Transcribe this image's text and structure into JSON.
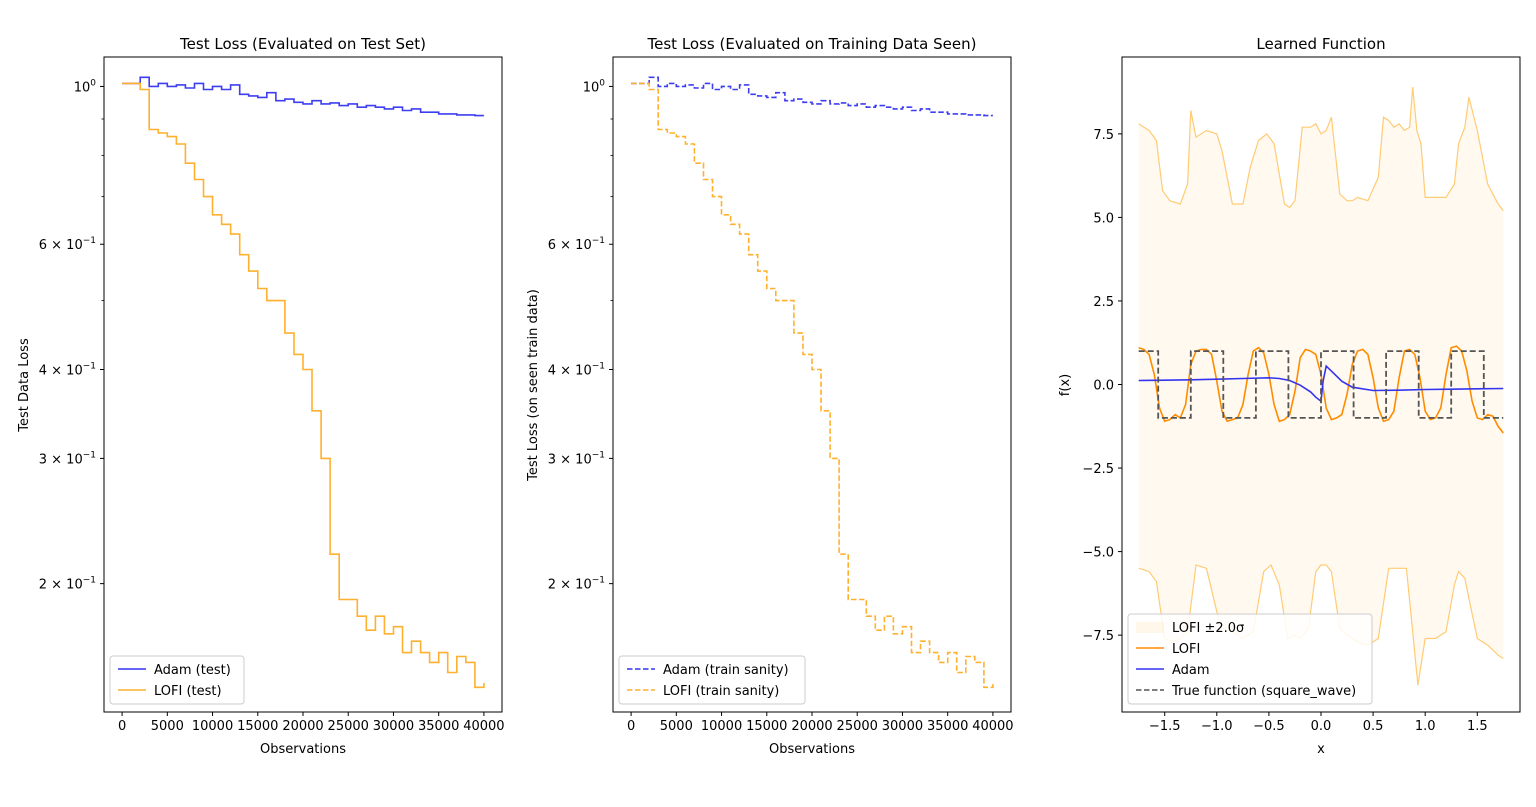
{
  "chart_data": [
    {
      "type": "line",
      "title": "Test Loss (Evaluated on Test Set)",
      "xlabel": "Observations",
      "ylabel": "Test Data Loss",
      "yscale": "log",
      "xlim": [
        -2000,
        42000
      ],
      "ylim": [
        0.132,
        1.1
      ],
      "xticks": [
        0,
        5000,
        10000,
        15000,
        20000,
        25000,
        30000,
        35000,
        40000
      ],
      "xtick_labels": [
        "0",
        "5000",
        "10000",
        "15000",
        "20000",
        "25000",
        "30000",
        "35000",
        "40000"
      ],
      "yticks": [
        {
          "value": 1.0,
          "base": "10",
          "exp": "0",
          "mult": ""
        },
        {
          "value": 0.6,
          "base": "10",
          "exp": "−1",
          "mult": "6 × "
        },
        {
          "value": 0.4,
          "base": "10",
          "exp": "−1",
          "mult": "4 × "
        },
        {
          "value": 0.3,
          "base": "10",
          "exp": "−1",
          "mult": "3 × "
        },
        {
          "value": 0.2,
          "base": "10",
          "exp": "−1",
          "mult": "2 × "
        }
      ],
      "minor_yticks": [
        0.9,
        0.8,
        0.7,
        0.5
      ],
      "legend_position": "lower-left",
      "series": [
        {
          "name": "Adam (test)",
          "color": "#3434f0",
          "dash": "solid",
          "step": true,
          "x": [
            0,
            1000,
            2000,
            3000,
            4000,
            5000,
            6000,
            7000,
            8000,
            9000,
            10000,
            11000,
            12000,
            13000,
            14000,
            15000,
            16000,
            17000,
            18000,
            19000,
            20000,
            21000,
            22000,
            23000,
            24000,
            25000,
            26000,
            27000,
            28000,
            29000,
            30000,
            31000,
            32000,
            33000,
            34000,
            35000,
            36000,
            37000,
            38000,
            39000,
            40000
          ],
          "y": [
            1.01,
            1.01,
            1.03,
            1.0,
            1.01,
            1.0,
            1.005,
            0.995,
            1.01,
            0.99,
            1.0,
            0.99,
            1.005,
            0.975,
            0.97,
            0.965,
            0.98,
            0.955,
            0.96,
            0.95,
            0.945,
            0.955,
            0.945,
            0.948,
            0.94,
            0.945,
            0.935,
            0.94,
            0.935,
            0.93,
            0.935,
            0.925,
            0.93,
            0.92,
            0.92,
            0.915,
            0.915,
            0.912,
            0.912,
            0.91,
            0.91
          ]
        },
        {
          "name": "LOFI (test)",
          "color": "#ffb02e",
          "dash": "solid",
          "step": true,
          "x": [
            0,
            1000,
            2000,
            3000,
            4000,
            5000,
            6000,
            7000,
            8000,
            9000,
            10000,
            11000,
            12000,
            13000,
            14000,
            15000,
            16000,
            17000,
            18000,
            19000,
            20000,
            21000,
            22000,
            23000,
            24000,
            25000,
            26000,
            27000,
            28000,
            29000,
            30000,
            31000,
            32000,
            33000,
            34000,
            35000,
            36000,
            37000,
            38000,
            39000,
            40000
          ],
          "y": [
            1.01,
            1.01,
            0.99,
            0.87,
            0.86,
            0.85,
            0.83,
            0.78,
            0.74,
            0.7,
            0.66,
            0.64,
            0.62,
            0.58,
            0.55,
            0.52,
            0.5,
            0.5,
            0.45,
            0.42,
            0.4,
            0.35,
            0.3,
            0.22,
            0.19,
            0.19,
            0.18,
            0.172,
            0.18,
            0.17,
            0.174,
            0.16,
            0.166,
            0.16,
            0.155,
            0.16,
            0.15,
            0.158,
            0.155,
            0.143,
            0.145
          ]
        }
      ]
    },
    {
      "type": "line",
      "title": "Test Loss (Evaluated on Training Data Seen)",
      "xlabel": "Observations",
      "ylabel": "Test Loss (on seen train data)",
      "yscale": "log",
      "xlim": [
        -2000,
        42000
      ],
      "ylim": [
        0.132,
        1.1
      ],
      "xticks": [
        0,
        5000,
        10000,
        15000,
        20000,
        25000,
        30000,
        35000,
        40000
      ],
      "xtick_labels": [
        "0",
        "5000",
        "10000",
        "15000",
        "20000",
        "25000",
        "30000",
        "35000",
        "40000"
      ],
      "yticks": [
        {
          "value": 1.0,
          "base": "10",
          "exp": "0",
          "mult": ""
        },
        {
          "value": 0.6,
          "base": "10",
          "exp": "−1",
          "mult": "6 × "
        },
        {
          "value": 0.4,
          "base": "10",
          "exp": "−1",
          "mult": "4 × "
        },
        {
          "value": 0.3,
          "base": "10",
          "exp": "−1",
          "mult": "3 × "
        },
        {
          "value": 0.2,
          "base": "10",
          "exp": "−1",
          "mult": "2 × "
        }
      ],
      "minor_yticks": [
        0.9,
        0.8,
        0.7,
        0.5
      ],
      "legend_position": "lower-left",
      "series": [
        {
          "name": "Adam (train sanity)",
          "color": "#3434f0",
          "dash": "dashed",
          "step": true,
          "x": [
            0,
            1000,
            2000,
            3000,
            4000,
            5000,
            6000,
            7000,
            8000,
            9000,
            10000,
            11000,
            12000,
            13000,
            14000,
            15000,
            16000,
            17000,
            18000,
            19000,
            20000,
            21000,
            22000,
            23000,
            24000,
            25000,
            26000,
            27000,
            28000,
            29000,
            30000,
            31000,
            32000,
            33000,
            34000,
            35000,
            36000,
            37000,
            38000,
            39000,
            40000
          ],
          "y": [
            1.01,
            1.01,
            1.03,
            1.0,
            1.01,
            1.0,
            1.005,
            0.995,
            1.01,
            0.99,
            1.0,
            0.99,
            1.005,
            0.975,
            0.97,
            0.965,
            0.98,
            0.955,
            0.96,
            0.95,
            0.945,
            0.955,
            0.945,
            0.948,
            0.94,
            0.945,
            0.935,
            0.94,
            0.935,
            0.93,
            0.935,
            0.925,
            0.93,
            0.92,
            0.92,
            0.915,
            0.915,
            0.912,
            0.912,
            0.91,
            0.91
          ]
        },
        {
          "name": "LOFI (train sanity)",
          "color": "#ffb02e",
          "dash": "dashed",
          "step": true,
          "x": [
            0,
            1000,
            2000,
            3000,
            4000,
            5000,
            6000,
            7000,
            8000,
            9000,
            10000,
            11000,
            12000,
            13000,
            14000,
            15000,
            16000,
            17000,
            18000,
            19000,
            20000,
            21000,
            22000,
            23000,
            24000,
            25000,
            26000,
            27000,
            28000,
            29000,
            30000,
            31000,
            32000,
            33000,
            34000,
            35000,
            36000,
            37000,
            38000,
            39000,
            40000
          ],
          "y": [
            1.01,
            1.01,
            0.99,
            0.87,
            0.86,
            0.85,
            0.83,
            0.78,
            0.74,
            0.7,
            0.66,
            0.64,
            0.62,
            0.58,
            0.55,
            0.52,
            0.5,
            0.5,
            0.45,
            0.42,
            0.4,
            0.35,
            0.3,
            0.22,
            0.19,
            0.19,
            0.18,
            0.172,
            0.18,
            0.17,
            0.174,
            0.16,
            0.166,
            0.16,
            0.155,
            0.16,
            0.15,
            0.158,
            0.155,
            0.143,
            0.145
          ]
        }
      ]
    },
    {
      "type": "line",
      "title": "Learned Function",
      "xlabel": "x",
      "ylabel": "f(x)",
      "yscale": "linear",
      "xlim": [
        -1.91,
        1.91
      ],
      "ylim": [
        -9.8,
        9.8
      ],
      "xticks": [
        -1.5,
        -1.0,
        -0.5,
        0.0,
        0.5,
        1.0,
        1.5
      ],
      "xtick_labels": [
        "−1.5",
        "−1.0",
        "−0.5",
        "0.0",
        "0.5",
        "1.0",
        "1.5"
      ],
      "yticks": [
        7.5,
        5.0,
        2.5,
        0.0,
        -2.5,
        -5.0,
        -7.5
      ],
      "ytick_labels": [
        "7.5",
        "5.0",
        "2.5",
        "0.0",
        "−2.5",
        "−5.0",
        "−7.5"
      ],
      "x_range": [
        -1.75,
        1.75
      ],
      "square_wave": {
        "half_period": 0.3125,
        "start_level": 1,
        "amplitude": 1
      },
      "band": {
        "name": "LOFI ±2.0σ",
        "color": "#ffb02e",
        "upper_x": [
          -1.75,
          -1.65,
          -1.58,
          -1.52,
          -1.45,
          -1.35,
          -1.28,
          -1.25,
          -1.2,
          -1.1,
          -1.0,
          -0.95,
          -0.85,
          -0.75,
          -0.68,
          -0.6,
          -0.52,
          -0.45,
          -0.35,
          -0.3,
          -0.25,
          -0.18,
          -0.1,
          -0.05,
          0.0,
          0.05,
          0.1,
          0.18,
          0.25,
          0.3,
          0.35,
          0.45,
          0.55,
          0.6,
          0.65,
          0.7,
          0.75,
          0.8,
          0.85,
          0.88,
          0.92,
          0.96,
          1.0,
          1.1,
          1.2,
          1.28,
          1.32,
          1.38,
          1.42,
          1.5,
          1.6,
          1.7,
          1.75
        ],
        "upper_y": [
          7.8,
          7.6,
          7.3,
          5.8,
          5.5,
          5.4,
          6.0,
          8.2,
          7.4,
          7.6,
          7.5,
          7.0,
          5.4,
          5.4,
          6.5,
          7.3,
          7.5,
          7.2,
          5.4,
          5.3,
          5.5,
          7.7,
          7.7,
          7.8,
          7.5,
          7.6,
          8.0,
          5.7,
          5.5,
          5.5,
          5.6,
          5.5,
          6.2,
          8.0,
          7.9,
          7.7,
          7.8,
          7.6,
          7.7,
          8.9,
          7.6,
          7.2,
          5.6,
          5.6,
          5.6,
          6.0,
          7.2,
          7.7,
          8.6,
          7.6,
          6.0,
          5.4,
          5.2
        ],
        "lower_x": [
          -1.75,
          -1.65,
          -1.58,
          -1.5,
          -1.42,
          -1.35,
          -1.28,
          -1.2,
          -1.1,
          -1.0,
          -0.95,
          -0.85,
          -0.75,
          -0.65,
          -0.55,
          -0.48,
          -0.4,
          -0.32,
          -0.25,
          -0.2,
          -0.12,
          -0.05,
          0.0,
          0.05,
          0.1,
          0.18,
          0.25,
          0.35,
          0.45,
          0.55,
          0.65,
          0.75,
          0.82,
          0.88,
          0.93,
          1.0,
          1.1,
          1.2,
          1.28,
          1.32,
          1.38,
          1.42,
          1.5,
          1.6,
          1.7,
          1.75
        ],
        "lower_y": [
          -5.5,
          -5.6,
          -5.9,
          -7.6,
          -7.7,
          -7.6,
          -7.4,
          -5.4,
          -5.5,
          -6.8,
          -7.3,
          -7.4,
          -7.6,
          -7.4,
          -5.6,
          -5.4,
          -6.0,
          -7.6,
          -7.5,
          -7.6,
          -7.3,
          -5.6,
          -5.4,
          -5.4,
          -5.6,
          -7.3,
          -7.5,
          -7.7,
          -7.8,
          -7.6,
          -5.5,
          -5.5,
          -5.5,
          -7.4,
          -9.0,
          -7.6,
          -7.6,
          -7.4,
          -6.0,
          -5.6,
          -5.8,
          -6.4,
          -7.6,
          -7.8,
          -8.1,
          -8.2
        ]
      },
      "series": [
        {
          "name": "LOFI",
          "color": "#ff8c00",
          "dash": "solid",
          "x": [
            -1.75,
            -1.7,
            -1.65,
            -1.6,
            -1.55,
            -1.5,
            -1.45,
            -1.4,
            -1.35,
            -1.3,
            -1.25,
            -1.2,
            -1.15,
            -1.1,
            -1.05,
            -1.0,
            -0.95,
            -0.9,
            -0.85,
            -0.8,
            -0.75,
            -0.7,
            -0.65,
            -0.6,
            -0.55,
            -0.5,
            -0.45,
            -0.4,
            -0.35,
            -0.3,
            -0.25,
            -0.2,
            -0.15,
            -0.1,
            -0.05,
            0.0,
            0.05,
            0.1,
            0.15,
            0.2,
            0.25,
            0.3,
            0.35,
            0.4,
            0.45,
            0.5,
            0.55,
            0.6,
            0.65,
            0.7,
            0.75,
            0.8,
            0.85,
            0.9,
            0.95,
            1.0,
            1.05,
            1.1,
            1.15,
            1.2,
            1.25,
            1.3,
            1.35,
            1.4,
            1.45,
            1.5,
            1.55,
            1.6,
            1.65,
            1.7,
            1.75
          ],
          "y": [
            1.1,
            1.05,
            0.9,
            0.3,
            -0.7,
            -1.1,
            -1.05,
            -0.9,
            -1.0,
            -0.6,
            0.6,
            1.0,
            1.05,
            1.05,
            0.9,
            0.1,
            -0.8,
            -1.1,
            -1.05,
            -1.0,
            -0.6,
            0.3,
            1.0,
            1.1,
            0.95,
            0.3,
            -0.6,
            -1.1,
            -1.05,
            -0.9,
            -0.2,
            0.8,
            1.05,
            1.0,
            0.9,
            0.3,
            -0.7,
            -1.05,
            -1.0,
            -0.9,
            -0.3,
            0.6,
            1.0,
            1.05,
            0.9,
            0.2,
            -0.7,
            -1.1,
            -1.05,
            -0.8,
            0.2,
            1.0,
            1.05,
            0.9,
            0.2,
            -0.8,
            -1.05,
            -1.0,
            -0.7,
            0.3,
            1.1,
            1.15,
            1.0,
            0.4,
            -0.5,
            -1.0,
            -1.05,
            -0.9,
            -0.95,
            -1.25,
            -1.45
          ]
        },
        {
          "name": "Adam",
          "color": "#3434f0",
          "dash": "solid",
          "x": [
            -1.75,
            -1.5,
            -1.25,
            -1.0,
            -0.75,
            -0.5,
            -0.4,
            -0.3,
            -0.2,
            -0.1,
            -0.05,
            0.0,
            0.02,
            0.05,
            0.1,
            0.2,
            0.3,
            0.5,
            0.75,
            1.0,
            1.25,
            1.5,
            1.75
          ],
          "y": [
            0.12,
            0.13,
            0.14,
            0.16,
            0.18,
            0.2,
            0.18,
            0.12,
            -0.02,
            -0.22,
            -0.38,
            -0.5,
            0.1,
            0.55,
            0.4,
            0.1,
            -0.08,
            -0.18,
            -0.17,
            -0.15,
            -0.14,
            -0.13,
            -0.12
          ]
        },
        {
          "name": "True function (square_wave)",
          "color": "#555555",
          "dash": "dashed",
          "generated_from": "square_wave"
        }
      ],
      "legend_position": "lower-left",
      "legend_entries": [
        "LOFI ±2.0σ",
        "LOFI",
        "Adam",
        "True function (square_wave)"
      ]
    }
  ]
}
